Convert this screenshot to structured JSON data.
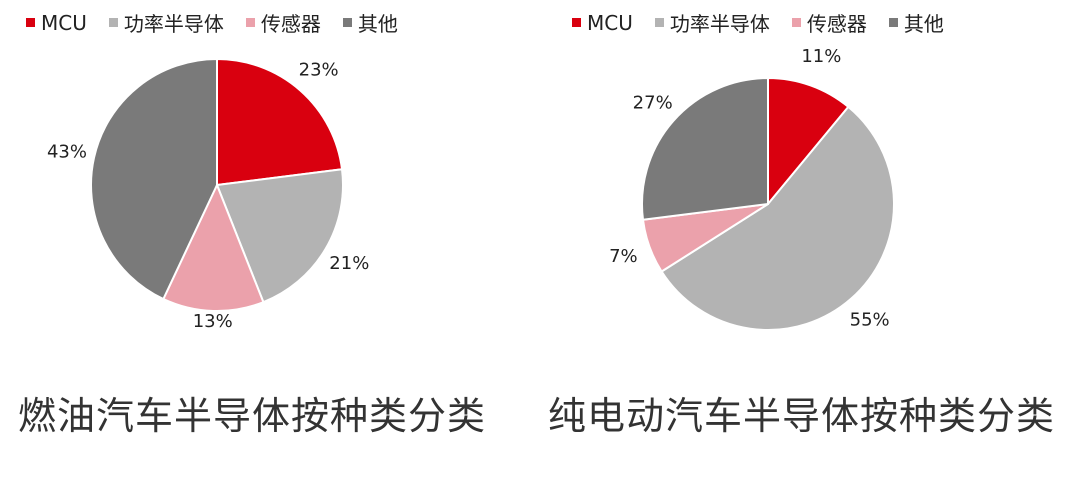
{
  "chart_data": [
    {
      "type": "pie",
      "title": "燃油汽车半导体按种类分类",
      "legend_position": "top",
      "categories": [
        "MCU",
        "功率半导体",
        "传感器",
        "其他"
      ],
      "values": [
        23,
        21,
        13,
        43
      ],
      "labels": [
        "23%",
        "21%",
        "13%",
        "43%"
      ],
      "colors": [
        "#d9000f",
        "#b3b3b3",
        "#eba1ab",
        "#7a7a7a"
      ]
    },
    {
      "type": "pie",
      "title": "纯电动汽车半导体按种类分类",
      "legend_position": "top",
      "categories": [
        "MCU",
        "功率半导体",
        "传感器",
        "其他"
      ],
      "values": [
        11,
        55,
        7,
        27
      ],
      "labels": [
        "11%",
        "55%",
        "7%",
        "27%"
      ],
      "colors": [
        "#d9000f",
        "#b3b3b3",
        "#eba1ab",
        "#7a7a7a"
      ]
    }
  ]
}
